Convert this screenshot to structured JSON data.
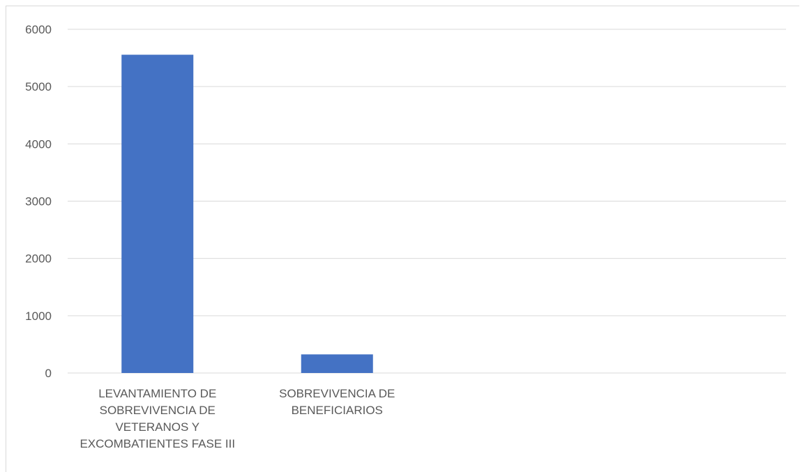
{
  "chart_data": {
    "type": "bar",
    "title": "",
    "xlabel": "",
    "ylabel": "",
    "categories": [
      [
        "LEVANTAMIENTO DE",
        "SOBREVIVENCIA DE",
        "VETERANOS Y",
        "EXCOMBATIENTES FASE III"
      ],
      [
        "SOBREVIVENCIA DE",
        "BENEFICIARIOS"
      ],
      [],
      []
    ],
    "values": [
      5556,
      325,
      null,
      null
    ],
    "ylim": [
      0,
      6000
    ],
    "yticks": [
      0,
      1000,
      2000,
      3000,
      4000,
      5000,
      6000
    ],
    "grid": true,
    "legend": "none",
    "colors": {
      "bar": "#4472C4",
      "grid": "#d9d9d9",
      "text": "#595959"
    }
  }
}
